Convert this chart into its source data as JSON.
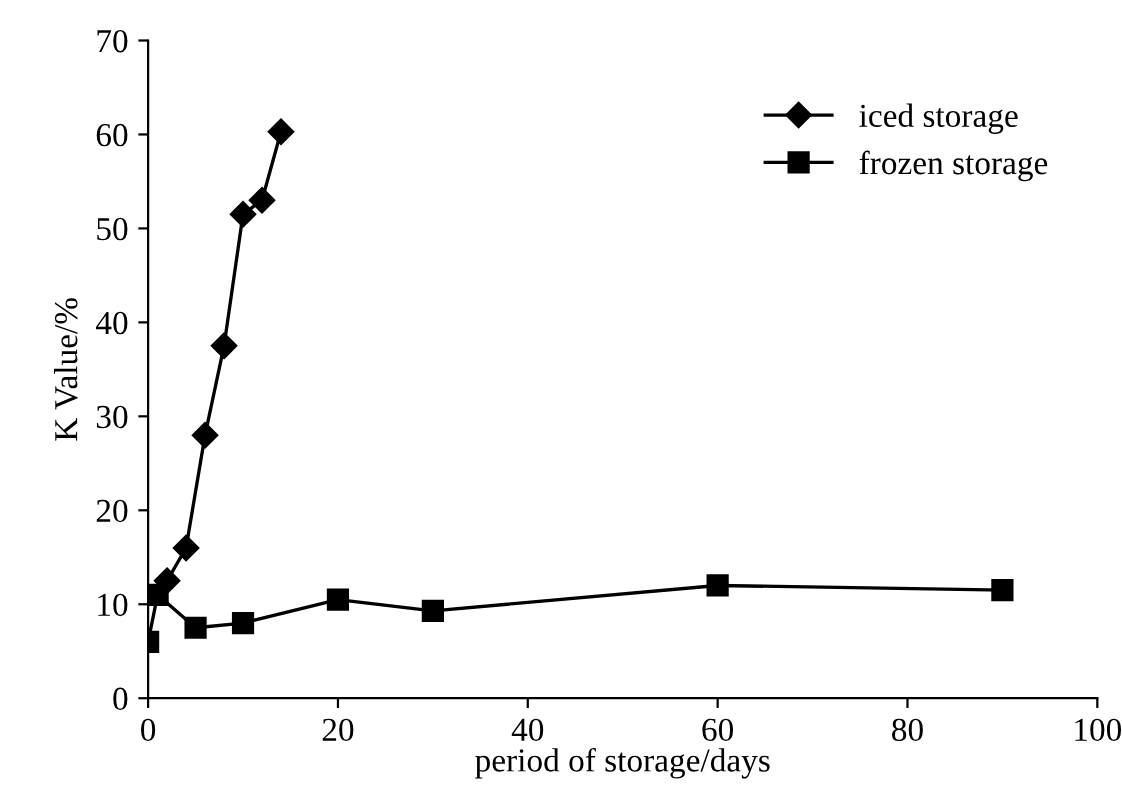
{
  "chart_data": {
    "type": "line",
    "xlabel": "period of storage/days",
    "ylabel": "K Value/%",
    "xlim": [
      0,
      100
    ],
    "xticks": [
      0,
      20,
      40,
      60,
      80,
      100
    ],
    "ylim": [
      0,
      70
    ],
    "yticks": [
      0,
      10,
      20,
      30,
      40,
      50,
      60,
      70
    ],
    "grid": false,
    "legend": "top right",
    "line_style": "solid",
    "series": [
      {
        "name": "iced storage",
        "color": "#000000",
        "marker": "diamond",
        "x": [
          2,
          4,
          6,
          8,
          10,
          12,
          14
        ],
        "values": [
          12.5,
          16,
          28,
          37.5,
          51.5,
          53,
          60.3
        ]
      },
      {
        "name": "frozen storage",
        "color": "#000000",
        "marker": "square",
        "x": [
          0,
          1,
          5,
          10,
          20,
          30,
          60,
          90
        ],
        "values": [
          6,
          11,
          7.5,
          8,
          10.5,
          9.3,
          12,
          11.5
        ]
      }
    ]
  }
}
